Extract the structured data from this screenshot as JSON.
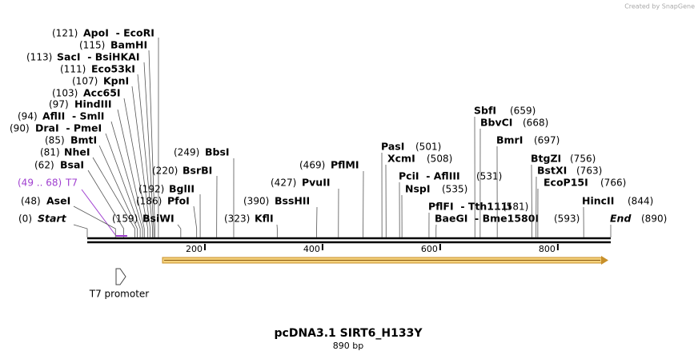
{
  "watermark": "Created by SnapGene",
  "title": "pcDNA3.1 SIRT6_H133Y",
  "subtitle": "890 bp",
  "ruler": {
    "ticks": [
      200,
      400,
      600,
      800
    ]
  },
  "features": [
    {
      "label": "T7 promoter"
    }
  ],
  "sites": [
    {
      "name": "ApoI  - EcoRI",
      "pos_label": "(121)",
      "pos": 121
    },
    {
      "name": "BamHI",
      "pos_label": "(115)",
      "pos": 115
    },
    {
      "name": "SacI  - BsiHKAI",
      "pos_label": "(113)",
      "pos": 113
    },
    {
      "name": "Eco53kI",
      "pos_label": "(111)",
      "pos": 111
    },
    {
      "name": "KpnI",
      "pos_label": "(107)",
      "pos": 107
    },
    {
      "name": "Acc65I",
      "pos_label": "(103)",
      "pos": 103
    },
    {
      "name": "HindIII",
      "pos_label": "(97)",
      "pos": 97
    },
    {
      "name": "AflII  - SmlI",
      "pos_label": "(94)",
      "pos": 94
    },
    {
      "name": "DraI  - PmeI",
      "pos_label": "(90)",
      "pos": 90
    },
    {
      "name": "BmtI",
      "pos_label": "(85)",
      "pos": 85
    },
    {
      "name": "NheI",
      "pos_label": "(81)",
      "pos": 81
    },
    {
      "name": "BsaI",
      "pos_label": "(62)",
      "pos": 62
    },
    {
      "name": "T7",
      "pos_label": "(49 .. 68)",
      "start": 49,
      "end": 68
    },
    {
      "name": "AseI",
      "pos_label": "(48)",
      "pos": 48
    },
    {
      "name": "Start",
      "pos_label": "(0)",
      "pos": 0
    },
    {
      "name": "BsiWI",
      "pos_label": "(159)",
      "pos": 159
    },
    {
      "name": "PfoI",
      "pos_label": "(186)",
      "pos": 186
    },
    {
      "name": "BglII",
      "pos_label": "(192)",
      "pos": 192
    },
    {
      "name": "BsrBI",
      "pos_label": "(220)",
      "pos": 220
    },
    {
      "name": "BbsI",
      "pos_label": "(249)",
      "pos": 249
    },
    {
      "name": "KflI",
      "pos_label": "(323)",
      "pos": 323
    },
    {
      "name": "BssHII",
      "pos_label": "(390)",
      "pos": 390
    },
    {
      "name": "PvuII",
      "pos_label": "(427)",
      "pos": 427
    },
    {
      "name": "PflMI",
      "pos_label": "(469)",
      "pos": 469
    },
    {
      "name": "PasI",
      "pos_label": "(501)",
      "pos": 501
    },
    {
      "name": "XcmI",
      "pos_label": "(508)",
      "pos": 508
    },
    {
      "name": "PciI  - AflIII",
      "pos_label": "(531)",
      "pos": 531
    },
    {
      "name": "NspI",
      "pos_label": "(535)",
      "pos": 535
    },
    {
      "name": "PflFI  - Tth111I",
      "pos_label": "(581)",
      "pos": 581
    },
    {
      "name": "BaeGI  - Bme1580I",
      "pos_label": "(593)",
      "pos": 593
    },
    {
      "name": "SbfI",
      "pos_label": "(659)",
      "pos": 659
    },
    {
      "name": "BbvCI",
      "pos_label": "(668)",
      "pos": 668
    },
    {
      "name": "BmrI",
      "pos_label": "(697)",
      "pos": 697
    },
    {
      "name": "BtgZI",
      "pos_label": "(756)",
      "pos": 756
    },
    {
      "name": "BstXI",
      "pos_label": "(763)",
      "pos": 763
    },
    {
      "name": "EcoP15I",
      "pos_label": "(766)",
      "pos": 766
    },
    {
      "name": "HincII",
      "pos_label": "(844)",
      "pos": 844
    },
    {
      "name": "End",
      "pos_label": "(890)",
      "pos": 890
    }
  ]
}
